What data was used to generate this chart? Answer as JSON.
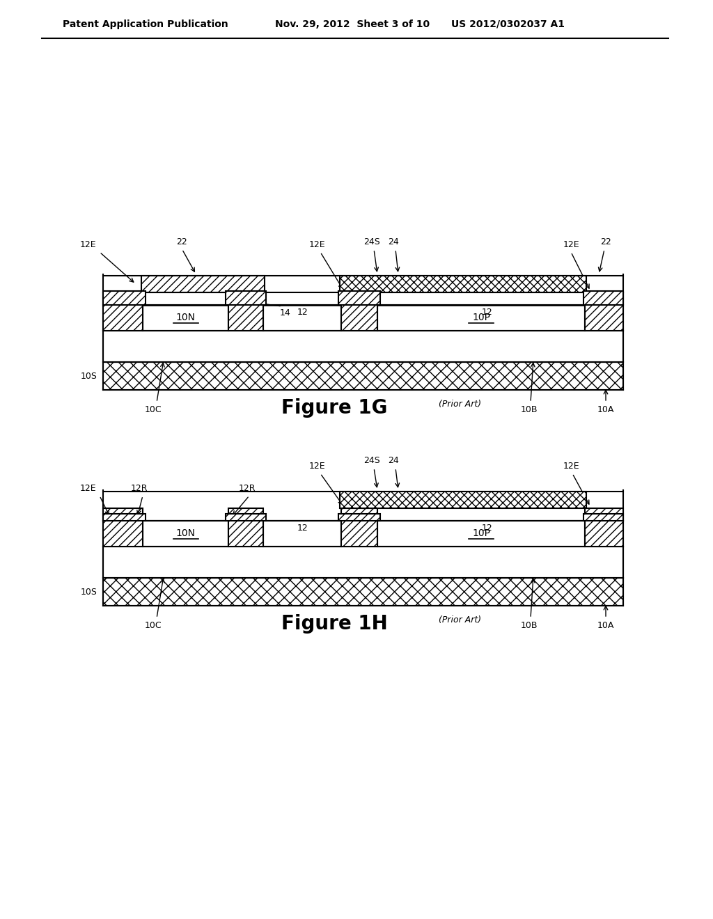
{
  "bg_color": "#ffffff",
  "header_text": "Patent Application Publication",
  "header_date": "Nov. 29, 2012  Sheet 3 of 10",
  "header_patent": "US 2012/0302037 A1",
  "fig1g_title": "Figure 1G",
  "fig1g_prior_art": "(Prior Art)",
  "fig1h_title": "Figure 1H",
  "fig1h_prior_art": "(Prior Art)",
  "line_color": "#000000"
}
